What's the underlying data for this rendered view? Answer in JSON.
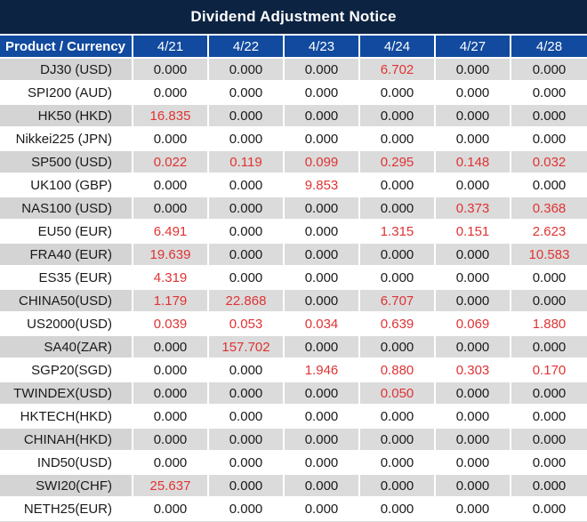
{
  "title": "Dividend Adjustment Notice",
  "colors": {
    "title_bar_bg": "#0d2342",
    "header_bg": "#114a9e",
    "header_text": "#ffffff",
    "row_bg": "#ffffff",
    "row_alt_bg": "#dbdbdb",
    "row_alt_product_bg": "#d4d4d4",
    "value_zero_text": "#1a1a1a",
    "value_nonzero_text": "#e03333"
  },
  "table": {
    "product_header": "Product / Currency",
    "date_headers": [
      "4/21",
      "4/22",
      "4/23",
      "4/24",
      "4/27",
      "4/28"
    ],
    "rows": [
      {
        "product": "DJ30 (USD)",
        "values": [
          "0.000",
          "0.000",
          "0.000",
          "6.702",
          "0.000",
          "0.000"
        ]
      },
      {
        "product": "SPI200 (AUD)",
        "values": [
          "0.000",
          "0.000",
          "0.000",
          "0.000",
          "0.000",
          "0.000"
        ]
      },
      {
        "product": "HK50 (HKD)",
        "values": [
          "16.835",
          "0.000",
          "0.000",
          "0.000",
          "0.000",
          "0.000"
        ]
      },
      {
        "product": "Nikkei225 (JPN)",
        "values": [
          "0.000",
          "0.000",
          "0.000",
          "0.000",
          "0.000",
          "0.000"
        ]
      },
      {
        "product": "SP500 (USD)",
        "values": [
          "0.022",
          "0.119",
          "0.099",
          "0.295",
          "0.148",
          "0.032"
        ]
      },
      {
        "product": "UK100 (GBP)",
        "values": [
          "0.000",
          "0.000",
          "9.853",
          "0.000",
          "0.000",
          "0.000"
        ]
      },
      {
        "product": "NAS100 (USD)",
        "values": [
          "0.000",
          "0.000",
          "0.000",
          "0.000",
          "0.373",
          "0.368"
        ]
      },
      {
        "product": "EU50 (EUR)",
        "values": [
          "6.491",
          "0.000",
          "0.000",
          "1.315",
          "0.151",
          "2.623"
        ]
      },
      {
        "product": "FRA40 (EUR)",
        "values": [
          "19.639",
          "0.000",
          "0.000",
          "0.000",
          "0.000",
          "10.583"
        ]
      },
      {
        "product": "ES35 (EUR)",
        "values": [
          "4.319",
          "0.000",
          "0.000",
          "0.000",
          "0.000",
          "0.000"
        ]
      },
      {
        "product": "CHINA50(USD)",
        "values": [
          "1.179",
          "22.868",
          "0.000",
          "6.707",
          "0.000",
          "0.000"
        ]
      },
      {
        "product": "US2000(USD)",
        "values": [
          "0.039",
          "0.053",
          "0.034",
          "0.639",
          "0.069",
          "1.880"
        ]
      },
      {
        "product": "SA40(ZAR)",
        "values": [
          "0.000",
          "157.702",
          "0.000",
          "0.000",
          "0.000",
          "0.000"
        ]
      },
      {
        "product": "SGP20(SGD)",
        "values": [
          "0.000",
          "0.000",
          "1.946",
          "0.880",
          "0.303",
          "0.170"
        ]
      },
      {
        "product": "TWINDEX(USD)",
        "values": [
          "0.000",
          "0.000",
          "0.000",
          "0.050",
          "0.000",
          "0.000"
        ]
      },
      {
        "product": "HKTECH(HKD)",
        "values": [
          "0.000",
          "0.000",
          "0.000",
          "0.000",
          "0.000",
          "0.000"
        ]
      },
      {
        "product": "CHINAH(HKD)",
        "values": [
          "0.000",
          "0.000",
          "0.000",
          "0.000",
          "0.000",
          "0.000"
        ]
      },
      {
        "product": "IND50(USD)",
        "values": [
          "0.000",
          "0.000",
          "0.000",
          "0.000",
          "0.000",
          "0.000"
        ]
      },
      {
        "product": "SWI20(CHF)",
        "values": [
          "25.637",
          "0.000",
          "0.000",
          "0.000",
          "0.000",
          "0.000"
        ]
      },
      {
        "product": "NETH25(EUR)",
        "values": [
          "0.000",
          "0.000",
          "0.000",
          "0.000",
          "0.000",
          "0.000"
        ]
      }
    ]
  }
}
